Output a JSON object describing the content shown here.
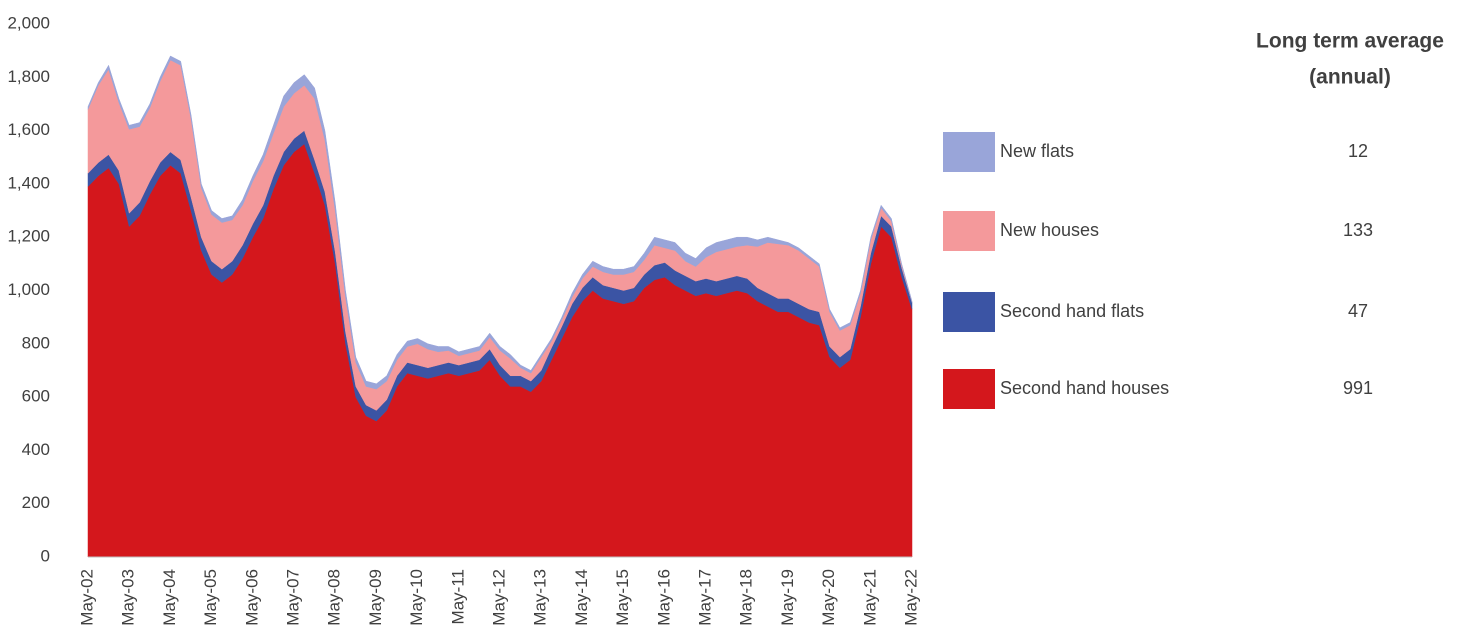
{
  "chart_data": {
    "type": "stacked_area",
    "categories": [
      "May-02",
      null,
      null,
      null,
      "May-03",
      null,
      null,
      null,
      "May-04",
      null,
      null,
      null,
      "May-05",
      null,
      null,
      null,
      "May-06",
      null,
      null,
      null,
      "May-07",
      null,
      null,
      null,
      "May-08",
      null,
      null,
      null,
      "May-09",
      null,
      null,
      null,
      "May-10",
      null,
      null,
      null,
      "May-11",
      null,
      null,
      null,
      "May-12",
      null,
      null,
      null,
      "May-13",
      null,
      null,
      null,
      "May-14",
      null,
      null,
      null,
      "May-15",
      null,
      null,
      null,
      "May-16",
      null,
      null,
      null,
      "May-17",
      null,
      null,
      null,
      "May-18",
      null,
      null,
      null,
      "May-19",
      null,
      null,
      null,
      "May-20",
      null,
      null,
      null,
      "May-21",
      null,
      null,
      null,
      "May-22"
    ],
    "series": [
      {
        "name": "Second hand houses",
        "color": "#d4171c",
        "average": 991,
        "values": [
          1390,
          1430,
          1460,
          1400,
          1240,
          1280,
          1360,
          1430,
          1470,
          1440,
          1300,
          1150,
          1060,
          1030,
          1060,
          1120,
          1200,
          1270,
          1380,
          1470,
          1520,
          1550,
          1440,
          1320,
          1100,
          800,
          600,
          530,
          510,
          550,
          640,
          690,
          680,
          670,
          680,
          690,
          680,
          690,
          700,
          740,
          680,
          640,
          640,
          620,
          660,
          740,
          820,
          900,
          960,
          1000,
          970,
          960,
          950,
          960,
          1010,
          1040,
          1050,
          1020,
          1000,
          980,
          990,
          980,
          990,
          1000,
          990,
          960,
          940,
          920,
          920,
          900,
          880,
          870,
          750,
          710,
          740,
          900,
          1100,
          1240,
          1200,
          1050,
          930
        ]
      },
      {
        "name": "Second hand flats",
        "color": "#3b54a4",
        "average": 47,
        "values": [
          50,
          50,
          50,
          50,
          50,
          50,
          50,
          50,
          50,
          50,
          50,
          50,
          50,
          50,
          50,
          50,
          50,
          50,
          50,
          50,
          50,
          50,
          50,
          50,
          45,
          45,
          40,
          40,
          40,
          40,
          40,
          40,
          40,
          40,
          40,
          40,
          40,
          40,
          40,
          40,
          40,
          40,
          40,
          40,
          40,
          45,
          45,
          50,
          50,
          50,
          50,
          50,
          50,
          50,
          50,
          55,
          55,
          55,
          55,
          55,
          55,
          55,
          55,
          55,
          55,
          50,
          50,
          50,
          50,
          50,
          50,
          50,
          40,
          40,
          40,
          40,
          40,
          40,
          40,
          35,
          25
        ]
      },
      {
        "name": "New houses",
        "color": "#f4999b",
        "average": 133,
        "values": [
          240,
          290,
          320,
          255,
          315,
          285,
          275,
          305,
          345,
          355,
          295,
          185,
          175,
          175,
          155,
          150,
          160,
          165,
          160,
          170,
          170,
          170,
          230,
          195,
          155,
          130,
          90,
          70,
          80,
          70,
          60,
          60,
          80,
          70,
          50,
          45,
          35,
          35,
          35,
          45,
          55,
          65,
          30,
          30,
          50,
          25,
          25,
          25,
          35,
          40,
          50,
          50,
          60,
          60,
          55,
          75,
          55,
          75,
          55,
          55,
          80,
          110,
          110,
          110,
          125,
          155,
          190,
          205,
          200,
          200,
          190,
          170,
          130,
          100,
          90,
          50,
          50,
          30,
          20,
          10,
          0
        ]
      },
      {
        "name": "New flats",
        "color": "#99a5d9",
        "average": 12,
        "values": [
          10,
          10,
          15,
          15,
          15,
          15,
          15,
          15,
          15,
          15,
          15,
          15,
          15,
          15,
          15,
          20,
          20,
          25,
          30,
          40,
          40,
          40,
          40,
          35,
          30,
          25,
          20,
          20,
          20,
          20,
          20,
          20,
          20,
          20,
          20,
          15,
          15,
          15,
          15,
          15,
          15,
          15,
          10,
          10,
          10,
          10,
          10,
          15,
          15,
          20,
          20,
          20,
          20,
          20,
          25,
          30,
          30,
          30,
          30,
          30,
          35,
          35,
          35,
          35,
          30,
          25,
          20,
          15,
          10,
          10,
          10,
          10,
          10,
          10,
          10,
          10,
          10,
          10,
          10,
          5,
          5
        ]
      }
    ],
    "legend_title": [
      "Long term average",
      "(annual)"
    ],
    "ylim": [
      0,
      2000
    ],
    "yticks": [
      0,
      200,
      400,
      600,
      800,
      {
        "value": 1000,
        "label": "1,000"
      },
      {
        "value": 1200,
        "label": "1,200"
      },
      {
        "value": 1400,
        "label": "1,400"
      },
      {
        "value": 1600,
        "label": "1,600"
      },
      {
        "value": 1800,
        "label": "1,800"
      },
      {
        "value": 2000,
        "label": "2,000"
      }
    ],
    "grid": false
  }
}
